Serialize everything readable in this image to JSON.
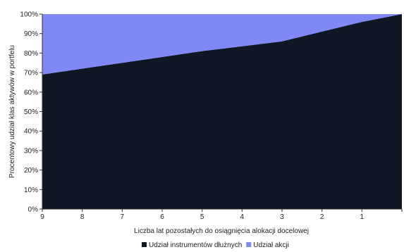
{
  "chart_data": {
    "type": "area",
    "stacked": true,
    "x": [
      "9",
      "8",
      "7",
      "6",
      "5",
      "4",
      "3",
      "2",
      "1",
      ""
    ],
    "series": [
      {
        "name": "Udział instrumentów dłużnych",
        "values": [
          69,
          72,
          75,
          78,
          81,
          83.5,
          86,
          91,
          96,
          100
        ],
        "color": "#0f1724"
      },
      {
        "name": "Udział akcji",
        "values": [
          31,
          28,
          25,
          22,
          19,
          16.5,
          14,
          9,
          4,
          0
        ],
        "color": "#7f88f5"
      }
    ],
    "xlabel": "Liczba lat pozostałych do osiągnięcia alokacji docelowej",
    "ylabel": "Procentowy udział klas aktywów w portfelu",
    "ylim": [
      0,
      100
    ],
    "yticks": [
      "0%",
      "10%",
      "20%",
      "30%",
      "40%",
      "50%",
      "60%",
      "70%",
      "80%",
      "90%",
      "100%"
    ],
    "grid": false,
    "legend_position": "bottom"
  }
}
